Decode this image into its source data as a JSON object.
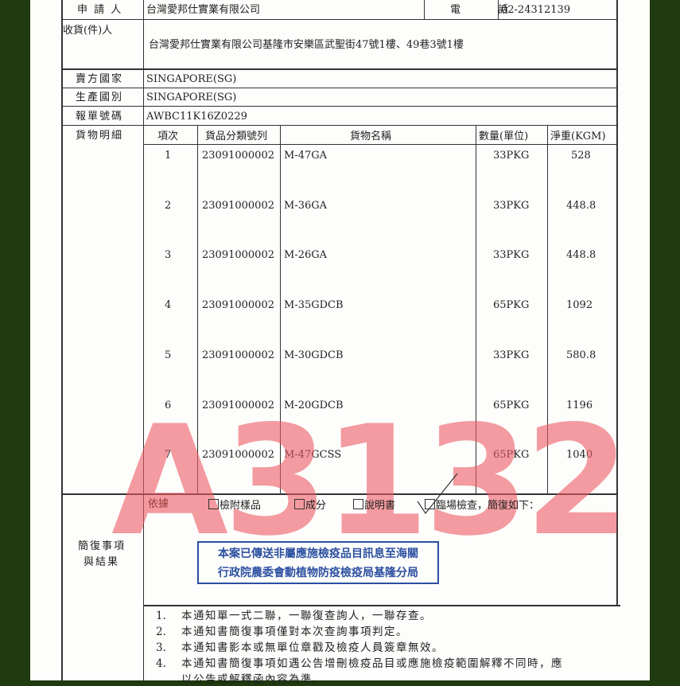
{
  "applicant": {
    "label": "申 請 人",
    "value": "台灣愛邦仕實業有限公司",
    "phone_label": "電　　　話",
    "phone": "02-24312139"
  },
  "consignee": {
    "label": "收貨(件)人",
    "value": "台灣愛邦仕實業有限公司基隆市安樂區武聖街47號1樓、49巷3號1樓"
  },
  "seller_country": {
    "label": "賣方國家",
    "value": "SINGAPORE(SG)"
  },
  "origin_country": {
    "label": "生產國別",
    "value": "SINGAPORE(SG)"
  },
  "declaration_no": {
    "label": "報單號碼",
    "value": "AWBC11K16Z0229"
  },
  "goods": {
    "label": "貨物明細",
    "headers": [
      "項次",
      "貨品分類號列",
      "貨物名稱",
      "數量(單位)",
      "淨重(KGM)"
    ],
    "rows": [
      [
        "1",
        "23091000002",
        "M-47GA",
        "33PKG",
        "528"
      ],
      [
        "2",
        "23091000002",
        "M-36GA",
        "33PKG",
        "448.8"
      ],
      [
        "3",
        "23091000002",
        "M-26GA",
        "33PKG",
        "448.8"
      ],
      [
        "4",
        "23091000002",
        "M-35GDCB",
        "65PKG",
        "1092"
      ],
      [
        "5",
        "23091000002",
        "M-30GDCB",
        "33PKG",
        "580.8"
      ],
      [
        "6",
        "23091000002",
        "M-20GDCB",
        "65PKG",
        "1196"
      ],
      [
        "7",
        "23091000002",
        "M-47GCSS",
        "65PKG",
        "1040"
      ]
    ]
  },
  "result": {
    "label_line1": "簡復事項",
    "label_line2": "與結果",
    "basis": "依據",
    "options": [
      {
        "label": "檢附樣品",
        "checked": false
      },
      {
        "label": "成分",
        "checked": false
      },
      {
        "label": "說明書",
        "checked": false
      },
      {
        "label": "臨場檢查，簡復如下：",
        "checked": true
      }
    ],
    "stamp_line1": "本案已傳送非屬應施檢疫品目訊息至海關",
    "stamp_line2": "行政院農委會動植物防疫檢疫局基隆分局",
    "stamp_color": "#2b4fa0"
  },
  "notes": [
    {
      "num": "1.",
      "text": "本通知單一式二聯，一聯復查詢人，一聯存查。"
    },
    {
      "num": "2.",
      "text": "本通知書簡復事項僅對本次查詢事項判定。"
    },
    {
      "num": "3.",
      "text": "本通知書影本或無單位章戳及檢疫人員簽章無效。"
    },
    {
      "num": "4.",
      "text": "本通知書簡復事項如遇公告增刪檢疫品目或應施檢疫範圍解釋不同時，應"
    },
    {
      "num": "",
      "text": "以公告或解釋函內容為準。"
    }
  ],
  "watermark": "A3132"
}
